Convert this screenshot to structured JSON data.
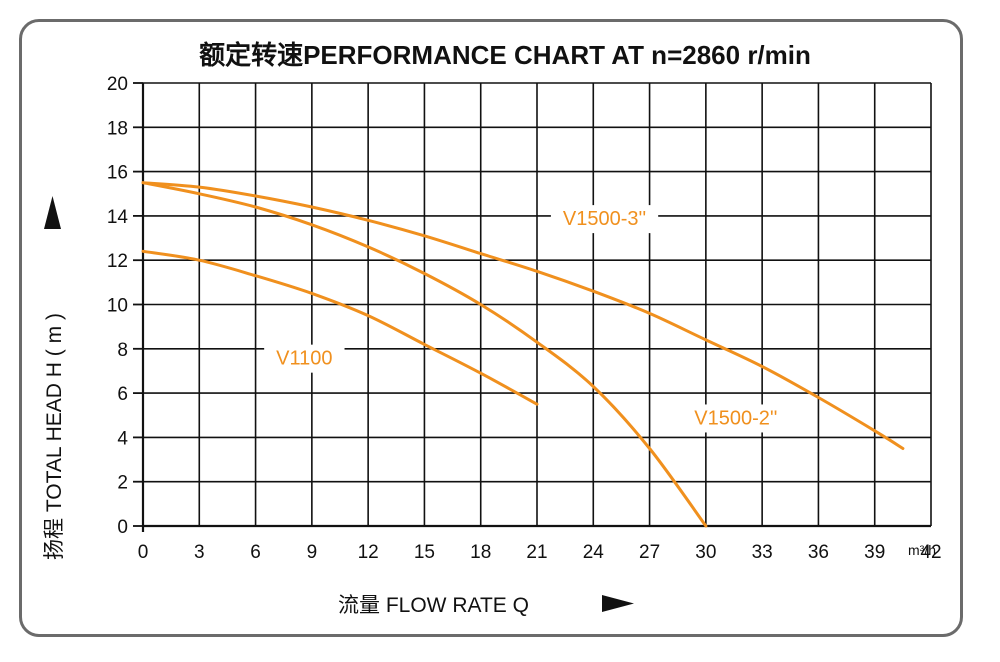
{
  "chart_data": {
    "type": "line",
    "title": "额定转速PERFORMANCE CHART AT  n=2860 r/min",
    "xlabel": "流量 FLOW RATE  Q",
    "ylabel": "扬程 TOTAL HEAD  H ( m )",
    "x_unit": "m³/h",
    "xlim": [
      0,
      42
    ],
    "ylim": [
      0,
      20
    ],
    "x_ticks": [
      0,
      3,
      6,
      9,
      12,
      15,
      18,
      21,
      24,
      27,
      30,
      33,
      36,
      39,
      42
    ],
    "y_ticks": [
      0,
      2,
      4,
      6,
      8,
      10,
      12,
      14,
      16,
      18,
      20
    ],
    "x_tick_labels": [
      "0",
      "3",
      "6",
      "9",
      "12",
      "15",
      "18",
      "21",
      "24",
      "27",
      "30",
      "33",
      "36",
      "39",
      "42"
    ],
    "y_tick_labels": [
      "0",
      "2",
      "4",
      "6",
      "8",
      "10",
      "12",
      "14",
      "16",
      "18",
      "20"
    ],
    "grid": true,
    "line_color": "#f0901e",
    "series": [
      {
        "name": "V1100",
        "x": [
          0,
          3,
          6,
          9,
          12,
          15,
          18,
          21
        ],
        "y": [
          12.4,
          12.0,
          11.3,
          10.5,
          9.5,
          8.2,
          6.9,
          5.5
        ]
      },
      {
        "name": "V1500-2''",
        "x": [
          0,
          3,
          6,
          9,
          12,
          15,
          18,
          21,
          24,
          27,
          30
        ],
        "y": [
          15.5,
          15.0,
          14.4,
          13.6,
          12.6,
          11.4,
          10.0,
          8.3,
          6.3,
          3.5,
          0.0
        ]
      },
      {
        "name": "V1500-3''",
        "x": [
          0,
          3,
          6,
          9,
          12,
          15,
          18,
          21,
          24,
          27,
          30,
          33,
          36,
          39,
          40.5
        ],
        "y": [
          15.5,
          15.3,
          14.9,
          14.4,
          13.8,
          13.1,
          12.3,
          11.5,
          10.6,
          9.6,
          8.4,
          7.2,
          5.8,
          4.3,
          3.5
        ]
      }
    ],
    "series_labels": [
      {
        "text": "V1100",
        "x": 8.6,
        "y": 7.6
      },
      {
        "text": "V1500-2''",
        "x": 31.6,
        "y": 4.9
      },
      {
        "text": "V1500-3''",
        "x": 24.6,
        "y": 13.9
      }
    ]
  }
}
